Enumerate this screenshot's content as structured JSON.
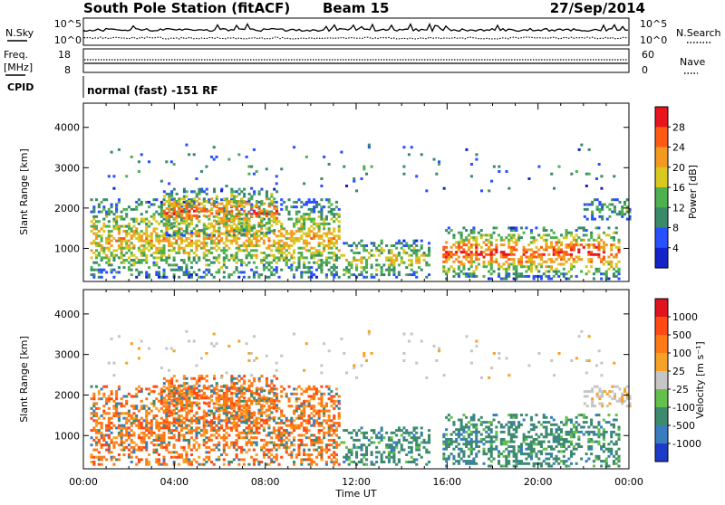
{
  "header": {
    "station": "South Pole Station (fitACF)",
    "beam": "Beam 15",
    "date": "27/Sep/2014"
  },
  "sky_panel": {
    "left_label": "N.Sky",
    "right_label": "N.Search",
    "left_ticks": [
      "10^5",
      "10^0"
    ],
    "right_ticks": [
      "10^5",
      "10^0"
    ]
  },
  "freq_panel": {
    "left_label_line1": "Freq.",
    "left_label_line2": "[MHz]",
    "right_label": "Nave",
    "left_ticks": [
      "18",
      "8"
    ],
    "right_ticks": [
      "60",
      "0"
    ]
  },
  "cpid_panel": {
    "label": "CPID",
    "text": "normal (fast) -151 RF"
  },
  "chart_data": [
    {
      "type": "heatmap",
      "name": "power",
      "xlabel": "",
      "ylabel": "Slant Range [km]",
      "ylim": [
        180,
        4600
      ],
      "xlim": [
        0,
        24
      ],
      "y_ticks": [
        "1000",
        "2000",
        "3000",
        "4000"
      ],
      "colorbar_label": "Power [dB]",
      "colorbar_ticks": [
        "4",
        "8",
        "12",
        "16",
        "20",
        "24",
        "28"
      ],
      "colorbar_range": [
        0,
        30
      ],
      "colors": [
        "#1424c8",
        "#2850ff",
        "#3a8a6a",
        "#4fb04f",
        "#d8c820",
        "#f39a20",
        "#ff5a14",
        "#e8141e"
      ]
    },
    {
      "type": "heatmap",
      "name": "velocity",
      "xlabel": "Time UT",
      "ylabel": "Slant Range [km]",
      "ylim": [
        180,
        4600
      ],
      "xlim": [
        0,
        24
      ],
      "x_ticks": [
        "00:00",
        "04:00",
        "08:00",
        "12:00",
        "16:00",
        "20:00",
        "00:00"
      ],
      "y_ticks": [
        "1000",
        "2000",
        "3000",
        "4000"
      ],
      "colorbar_label": "Velocity [m s⁻¹]",
      "colorbar_ticks": [
        "1000",
        "500",
        "100",
        "25",
        "-25",
        "-100",
        "-500",
        "-1000"
      ],
      "colors": [
        "#1c3cc8",
        "#3a7dbf",
        "#3d8a6e",
        "#63c04d",
        "#c6c6c6",
        "#f6a226",
        "#ff7a14",
        "#ff4a14",
        "#e0141e"
      ]
    }
  ]
}
